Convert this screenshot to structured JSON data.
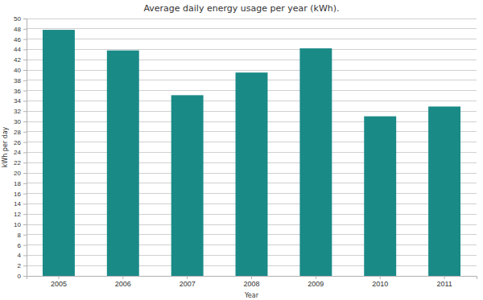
{
  "chart_data": {
    "type": "bar",
    "title": "Average daily energy usage per year (kWh).",
    "x_label": "Year",
    "y_label": "kWh per day",
    "categories": [
      "2005",
      "2006",
      "2007",
      "2008",
      "2009",
      "2010",
      "2011"
    ],
    "values": [
      47.8,
      43.8,
      35.1,
      39.5,
      44.2,
      31.0,
      32.9
    ],
    "color": "#1a8a87",
    "ylim": [
      0,
      50
    ],
    "yticks": [
      0,
      2,
      4,
      6,
      8,
      10,
      12,
      14,
      16,
      18,
      20,
      22,
      24,
      26,
      28,
      30,
      32,
      34,
      36,
      38,
      40,
      42,
      44,
      46,
      48,
      50
    ],
    "grid": true
  }
}
